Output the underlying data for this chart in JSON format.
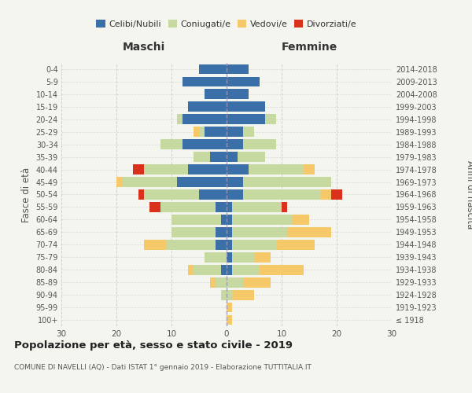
{
  "age_groups": [
    "100+",
    "95-99",
    "90-94",
    "85-89",
    "80-84",
    "75-79",
    "70-74",
    "65-69",
    "60-64",
    "55-59",
    "50-54",
    "45-49",
    "40-44",
    "35-39",
    "30-34",
    "25-29",
    "20-24",
    "15-19",
    "10-14",
    "5-9",
    "0-4"
  ],
  "birth_years": [
    "≤ 1918",
    "1919-1923",
    "1924-1928",
    "1929-1933",
    "1934-1938",
    "1939-1943",
    "1944-1948",
    "1949-1953",
    "1954-1958",
    "1959-1963",
    "1964-1968",
    "1969-1973",
    "1974-1978",
    "1979-1983",
    "1984-1988",
    "1989-1993",
    "1994-1998",
    "1999-2003",
    "2004-2008",
    "2009-2013",
    "2014-2018"
  ],
  "maschi": {
    "celibi": [
      0,
      0,
      0,
      0,
      1,
      0,
      2,
      2,
      1,
      2,
      5,
      9,
      7,
      3,
      8,
      4,
      8,
      7,
      4,
      8,
      5
    ],
    "coniugati": [
      0,
      0,
      1,
      2,
      5,
      4,
      9,
      8,
      9,
      10,
      10,
      10,
      8,
      3,
      4,
      1,
      1,
      0,
      0,
      0,
      0
    ],
    "vedovi": [
      0,
      0,
      0,
      1,
      1,
      0,
      4,
      0,
      0,
      0,
      0,
      1,
      0,
      0,
      0,
      1,
      0,
      0,
      0,
      0,
      0
    ],
    "divorziati": [
      0,
      0,
      0,
      0,
      0,
      0,
      0,
      0,
      0,
      2,
      1,
      0,
      2,
      0,
      0,
      0,
      0,
      0,
      0,
      0,
      0
    ]
  },
  "femmine": {
    "nubili": [
      0,
      0,
      0,
      0,
      1,
      1,
      1,
      1,
      1,
      1,
      3,
      3,
      4,
      2,
      3,
      3,
      7,
      7,
      4,
      6,
      4
    ],
    "coniugate": [
      0,
      0,
      1,
      3,
      5,
      4,
      8,
      10,
      11,
      9,
      14,
      16,
      10,
      5,
      6,
      2,
      2,
      0,
      0,
      0,
      0
    ],
    "vedove": [
      1,
      1,
      4,
      5,
      8,
      3,
      7,
      8,
      3,
      0,
      2,
      0,
      2,
      0,
      0,
      0,
      0,
      0,
      0,
      0,
      0
    ],
    "divorziate": [
      0,
      0,
      0,
      0,
      0,
      0,
      0,
      0,
      0,
      1,
      2,
      0,
      0,
      0,
      0,
      0,
      0,
      0,
      0,
      0,
      0
    ]
  },
  "colors": {
    "celibi_nubili": "#3a6fa8",
    "coniugati": "#c5d9a0",
    "vedovi": "#f5c96a",
    "divorziati": "#d9311b"
  },
  "xlim": 30,
  "title": "Popolazione per età, sesso e stato civile - 2019",
  "subtitle": "COMUNE DI NAVELLI (AQ) - Dati ISTAT 1° gennaio 2019 - Elaborazione TUTTITALIA.IT",
  "ylabel_left": "Fasce di età",
  "ylabel_right": "Anni di nascita",
  "xlabel_maschi": "Maschi",
  "xlabel_femmine": "Femmine",
  "bg_color": "#f5f5f0",
  "grid_color": "#cccccc"
}
